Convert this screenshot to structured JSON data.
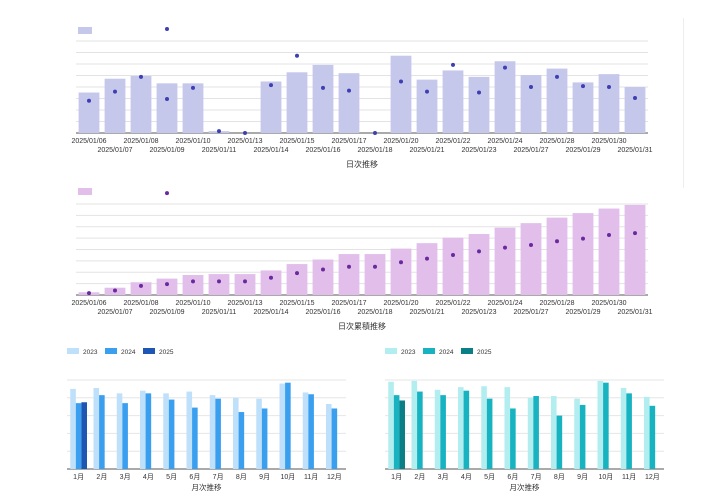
{
  "chart_data": [
    {
      "id": "daily",
      "type": "bar",
      "xlabel": "日次推移",
      "legend": "top-left",
      "grid": true,
      "colors": {
        "bar": "#c5c8ea",
        "dot": "#3d3fb3",
        "legend": "#c5c8ea"
      },
      "categories": [
        "2025/01/06",
        "2025/01/07",
        "2025/01/08",
        "2025/01/09",
        "2025/01/10",
        "2025/01/11",
        "2025/01/13",
        "2025/01/14",
        "2025/01/15",
        "2025/01/16",
        "2025/01/17",
        "2025/01/18",
        "2025/01/20",
        "2025/01/21",
        "2025/01/22",
        "2025/01/23",
        "2025/01/24",
        "2025/01/27",
        "2025/01/28",
        "2025/01/29",
        "2025/01/30",
        "2025/01/31"
      ],
      "ylim": [
        0,
        100
      ],
      "bars": [
        44,
        59,
        62,
        54,
        54,
        2,
        0,
        56,
        66,
        74,
        65,
        0,
        84,
        58,
        68,
        61,
        78,
        63,
        70,
        55,
        64,
        50
      ],
      "dots": [
        35,
        45,
        61,
        37,
        49,
        2,
        0,
        52,
        84,
        49,
        46,
        0,
        56,
        45,
        74,
        44,
        71,
        50,
        61,
        51,
        50,
        38
      ],
      "outlier_dots": [
        {
          "index": 3,
          "value": 113
        }
      ]
    },
    {
      "id": "cumulative",
      "type": "bar",
      "xlabel": "日次累積推移",
      "legend": "top-left",
      "grid": true,
      "colors": {
        "bar": "#e2bfeb",
        "dot": "#6a2a9e",
        "legend": "#e2bfeb"
      },
      "categories": [
        "2025/01/06",
        "2025/01/07",
        "2025/01/08",
        "2025/01/09",
        "2025/01/10",
        "2025/01/11",
        "2025/01/13",
        "2025/01/14",
        "2025/01/15",
        "2025/01/16",
        "2025/01/17",
        "2025/01/18",
        "2025/01/20",
        "2025/01/21",
        "2025/01/22",
        "2025/01/23",
        "2025/01/24",
        "2025/01/27",
        "2025/01/28",
        "2025/01/29",
        "2025/01/30",
        "2025/01/31"
      ],
      "ylim": [
        0,
        100
      ],
      "bars": [
        3,
        8,
        14,
        18,
        22,
        23,
        23,
        27,
        34,
        39,
        45,
        45,
        51,
        57,
        63,
        67,
        74,
        79,
        85,
        90,
        95,
        99
      ],
      "dots": [
        2,
        5,
        10,
        12,
        15,
        15,
        15,
        19,
        24,
        28,
        31,
        31,
        36,
        40,
        44,
        48,
        52,
        55,
        59,
        62,
        66,
        68
      ],
      "outlier_dots": [
        {
          "index": 3,
          "value": 112
        }
      ]
    },
    {
      "id": "monthly_left",
      "type": "bar",
      "xlabel": "月次推移",
      "legend": "top-left",
      "grid": true,
      "categories": [
        "1月",
        "2月",
        "3月",
        "4月",
        "5月",
        "6月",
        "7月",
        "8月",
        "9月",
        "10月",
        "11月",
        "12月"
      ],
      "ylim": [
        0,
        100
      ],
      "series": [
        {
          "name": "2023",
          "color": "#bfe0fa",
          "values": [
            90,
            91,
            85,
            88,
            85,
            87,
            83,
            80,
            79,
            96,
            86,
            73
          ]
        },
        {
          "name": "2024",
          "color": "#3b9ff0",
          "values": [
            74,
            83,
            74,
            85,
            78,
            69,
            79,
            64,
            68,
            97,
            84,
            68
          ]
        },
        {
          "name": "2025",
          "color": "#1e56b3",
          "values": [
            75,
            null,
            null,
            null,
            null,
            null,
            null,
            null,
            null,
            null,
            null,
            null
          ]
        }
      ]
    },
    {
      "id": "monthly_right",
      "type": "bar",
      "xlabel": "月次推移",
      "legend": "top-left",
      "grid": true,
      "categories": [
        "1月",
        "2月",
        "3月",
        "4月",
        "5月",
        "6月",
        "7月",
        "8月",
        "9月",
        "10月",
        "11月",
        "12月"
      ],
      "ylim": [
        0,
        100
      ],
      "series": [
        {
          "name": "2023",
          "color": "#b2eef0",
          "values": [
            98,
            99,
            89,
            92,
            93,
            92,
            80,
            82,
            79,
            99,
            91,
            81
          ]
        },
        {
          "name": "2024",
          "color": "#17b3c1",
          "values": [
            83,
            87,
            83,
            88,
            79,
            68,
            82,
            60,
            72,
            97,
            85,
            71
          ]
        },
        {
          "name": "2025",
          "color": "#0b7f86",
          "values": [
            77,
            null,
            null,
            null,
            null,
            null,
            null,
            null,
            null,
            null,
            null,
            null
          ]
        }
      ]
    }
  ]
}
